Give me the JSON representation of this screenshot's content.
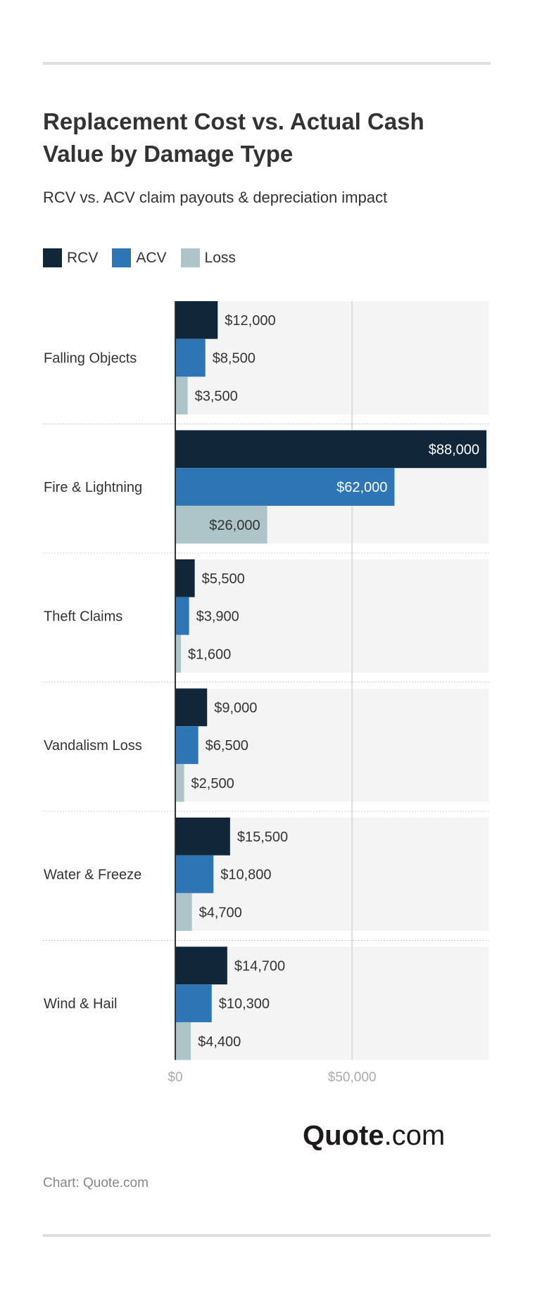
{
  "title": "Replacement Cost vs. Actual Cash Value by Damage Type",
  "subtitle": "RCV vs. ACV claim payouts & depreciation impact",
  "source": "Chart: Quote.com",
  "logo": {
    "bold": "Quote",
    "rest": ".com"
  },
  "chart_data": {
    "type": "bar",
    "orientation": "horizontal",
    "categories": [
      "Falling Objects",
      "Fire & Lightning",
      "Theft Claims",
      "Vandalism Loss",
      "Water & Freeze",
      "Wind & Hail"
    ],
    "series": [
      {
        "name": "RCV",
        "color": "#12263a",
        "values": [
          12000,
          88000,
          5500,
          9000,
          15500,
          14700
        ],
        "labels": [
          "$12,000",
          "$88,000",
          "$5,500",
          "$9,000",
          "$15,500",
          "$14,700"
        ]
      },
      {
        "name": "ACV",
        "color": "#2e75b6",
        "values": [
          8500,
          62000,
          3900,
          6500,
          10800,
          10300
        ],
        "labels": [
          "$8,500",
          "$62,000",
          "$3,900",
          "$6,500",
          "$10,800",
          "$10,300"
        ]
      },
      {
        "name": "Loss",
        "color": "#adc4c8",
        "values": [
          3500,
          26000,
          1600,
          2500,
          4700,
          4400
        ],
        "labels": [
          "$3,500",
          "$26,000",
          "$1,600",
          "$2,500",
          "$4,700",
          "$4,400"
        ]
      }
    ],
    "xlim": [
      0,
      88000
    ],
    "xticks": [
      0,
      50000
    ],
    "xtick_labels": [
      "$0",
      "$50,000"
    ],
    "grid": true,
    "legend": "top-left"
  }
}
